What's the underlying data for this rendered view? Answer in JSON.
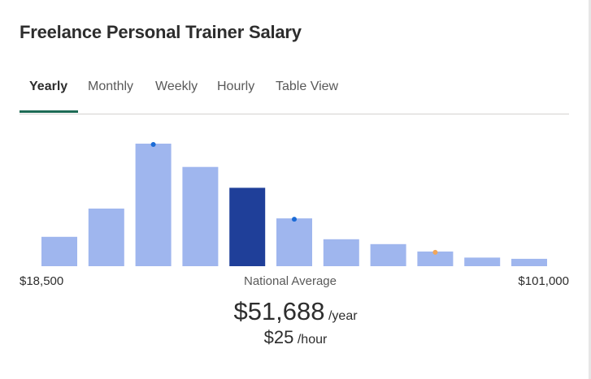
{
  "header": {
    "title": "Freelance Personal Trainer Salary"
  },
  "tabs": [
    {
      "label": "Yearly",
      "active": true
    },
    {
      "label": "Monthly",
      "active": false
    },
    {
      "label": "Weekly",
      "active": false
    },
    {
      "label": "Hourly",
      "active": false
    },
    {
      "label": "Table View",
      "active": false
    }
  ],
  "colors": {
    "bar": "#9fb6ee",
    "bar_highlight": "#1f3f99",
    "tab_accent": "#1d6b55",
    "dot_blue": "#1a6bd6",
    "dot_orange": "#f2a65a"
  },
  "chart_data": {
    "type": "bar",
    "bins": 11,
    "values": [
      24,
      47,
      100,
      81,
      64,
      39,
      22,
      18,
      12,
      7,
      6
    ],
    "highlight_index": 4,
    "markers": [
      {
        "bin": 2,
        "color": "blue"
      },
      {
        "bin": 5,
        "color": "blue"
      },
      {
        "bin": 8,
        "color": "orange"
      }
    ],
    "range_min_label": "$18,500",
    "range_max_label": "$101,000",
    "center_label": "National Average"
  },
  "salary": {
    "yearly_amount": "$51,688",
    "yearly_unit": "/year",
    "hourly_amount": "$25",
    "hourly_unit": "/hour"
  }
}
